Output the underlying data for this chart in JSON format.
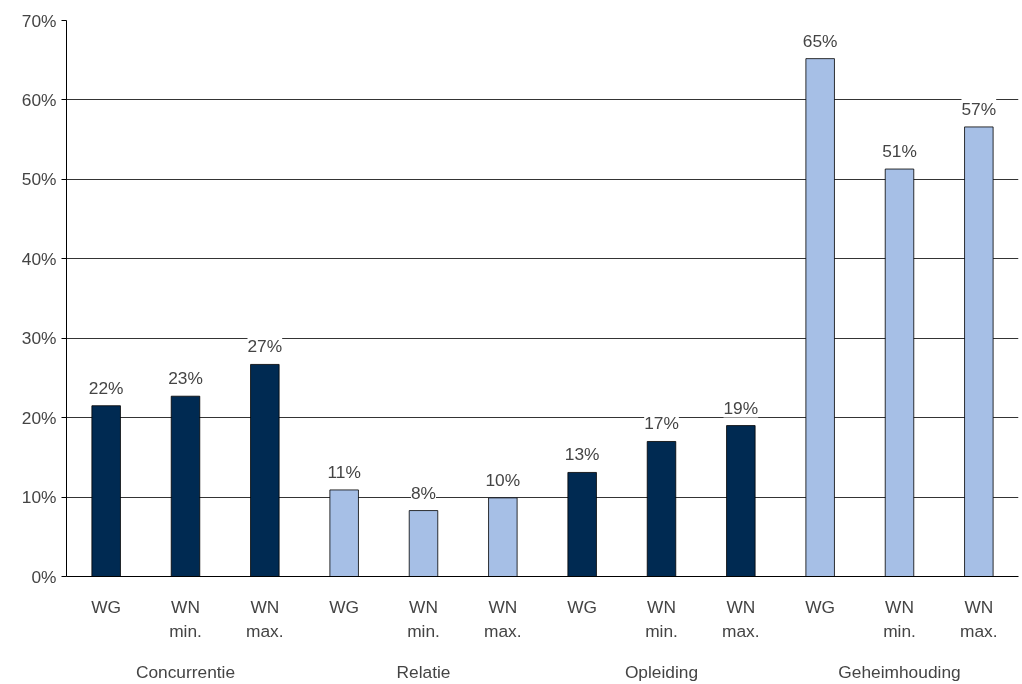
{
  "chart_data": {
    "type": "bar",
    "categories": [
      "WG",
      "WN min.",
      "WN max.",
      "WG",
      "WN min.",
      "WN max.",
      "WG",
      "WN min.",
      "WN max.",
      "WG",
      "WN min.",
      "WN max."
    ],
    "values": [
      21.5,
      22.7,
      26.7,
      10.9,
      8.3,
      9.9,
      13.1,
      17,
      19,
      65.2,
      51.3,
      56.6
    ],
    "value_labels": [
      "22%",
      "23%",
      "27%",
      "11%",
      "8%",
      "10%",
      "13%",
      "17%",
      "19%",
      "65%",
      "51%",
      "57%"
    ],
    "colors": [
      "#002a52",
      "#002a52",
      "#002a52",
      "#a6bfe6",
      "#a6bfe6",
      "#a6bfe6",
      "#002a52",
      "#002a52",
      "#002a52",
      "#a6bfe6",
      "#a6bfe6",
      "#a6bfe6"
    ],
    "ylim": [
      0,
      70
    ],
    "yticks": [
      {
        "value": 0,
        "label": "0%"
      },
      {
        "value": 10,
        "label": "10%"
      },
      {
        "value": 20,
        "label": "20%"
      },
      {
        "value": 30,
        "label": "30%"
      },
      {
        "value": 40,
        "label": "40%"
      },
      {
        "value": 50,
        "label": "50%"
      },
      {
        "value": 60,
        "label": "60%"
      },
      {
        "value": 70,
        "label": "70%"
      }
    ],
    "grid": "y",
    "annotations": [
      "Concurrentie",
      "Relatie",
      "Opleiding",
      "Geheimhouding"
    ]
  }
}
